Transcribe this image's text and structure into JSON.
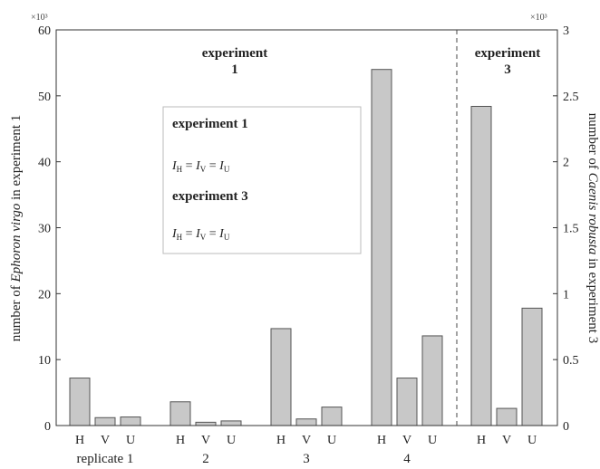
{
  "chart_data": {
    "type": "bar",
    "left_axis": {
      "label_prefix": "number of ",
      "label_species": "Ephoron virgo",
      "label_suffix": " in experiment 1",
      "ticks": [
        "0",
        "10",
        "20",
        "30",
        "40",
        "50",
        "60"
      ],
      "ylim": [
        0,
        60
      ],
      "multiplier": "×10³"
    },
    "right_axis": {
      "label_prefix": "number of ",
      "label_species": "Caenis robusta",
      "label_suffix": " in experiment 3",
      "ticks": [
        "0",
        "0.5",
        "1",
        "1.5",
        "2",
        "2.5",
        "3"
      ],
      "ylim": [
        0,
        3
      ],
      "multiplier": "×10³"
    },
    "groups": [
      {
        "label": "replicate 1",
        "axis": "left",
        "categories": [
          "H",
          "V",
          "U"
        ],
        "values": [
          7.2,
          1.2,
          1.3
        ]
      },
      {
        "label": "2",
        "axis": "left",
        "categories": [
          "H",
          "V",
          "U"
        ],
        "values": [
          3.6,
          0.5,
          0.7
        ]
      },
      {
        "label": "3",
        "axis": "left",
        "categories": [
          "H",
          "V",
          "U"
        ],
        "values": [
          14.7,
          1.0,
          2.8
        ]
      },
      {
        "label": "4",
        "axis": "left",
        "categories": [
          "H",
          "V",
          "U"
        ],
        "values": [
          54.0,
          7.2,
          13.6
        ]
      },
      {
        "label": "",
        "axis": "right",
        "categories": [
          "H",
          "V",
          "U"
        ],
        "values": [
          2.42,
          0.13,
          0.89
        ]
      }
    ],
    "annotations": {
      "exp1_title": [
        "experiment",
        "1"
      ],
      "exp3_title": [
        "experiment",
        "3"
      ],
      "box": {
        "title1": "experiment 1",
        "title3": "experiment 3",
        "eq_I": "I",
        "eq_sub_H": "H",
        "eq_sub_V": "V",
        "eq_sub_U": "U",
        "eq_eq": " = "
      }
    }
  }
}
